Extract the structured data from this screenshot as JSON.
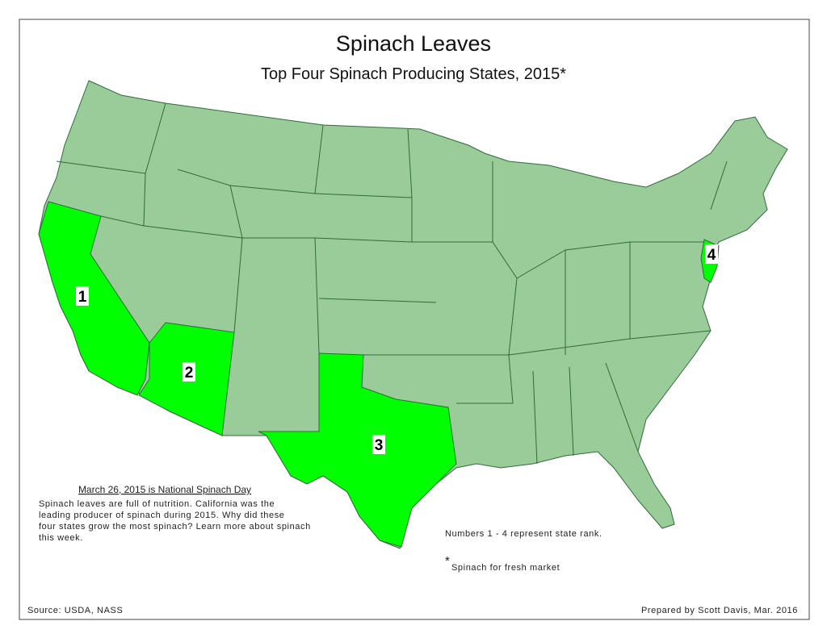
{
  "header": {
    "title": "Spinach Leaves",
    "subtitle": "Top Four Spinach Producing States, 2015*"
  },
  "rank_labels": [
    "1",
    "2",
    "3",
    "4"
  ],
  "note": {
    "heading": "March 26, 2015 is National Spinach Day",
    "body_lines": [
      "Spinach leaves are full of nutrition.  California was the",
      "leading producer of spinach during 2015.  Why did these",
      "four states grow the most spinach?  Learn more about spinach",
      "this week."
    ]
  },
  "legend_note": "Numbers 1 - 4 represent state rank.",
  "footnote": {
    "marker": "*",
    "text": "Spinach for fresh market"
  },
  "footer": {
    "source": "Source: USDA, NASS",
    "credit": "Prepared by Scott Davis, Mar. 2016"
  }
}
